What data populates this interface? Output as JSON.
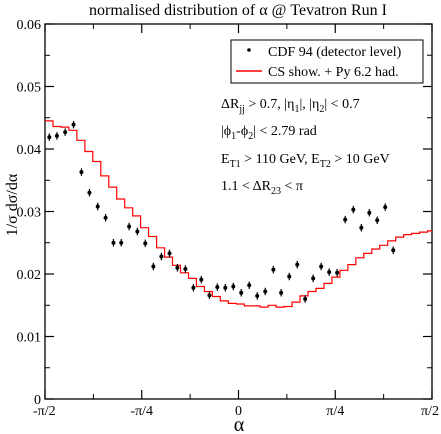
{
  "chart_data": {
    "type": "scatter",
    "title": "normalised distribution of α @ Tevatron Run I",
    "xlabel": "α",
    "ylabel": "1/σ dσ/dα",
    "xlim": [
      -1.5708,
      1.5708
    ],
    "ylim": [
      0,
      0.06
    ],
    "grid": false,
    "legend_position": "top-right",
    "xticks": [
      {
        "value": -1.5708,
        "label": "-π/2"
      },
      {
        "value": -0.7854,
        "label": "-π/4"
      },
      {
        "value": 0,
        "label": "0"
      },
      {
        "value": 0.7854,
        "label": "π/4"
      },
      {
        "value": 1.5708,
        "label": "π/2"
      }
    ],
    "yticks": [
      {
        "value": 0,
        "label": "0"
      },
      {
        "value": 0.01,
        "label": "0.01"
      },
      {
        "value": 0.02,
        "label": "0.02"
      },
      {
        "value": 0.03,
        "label": "0.03"
      },
      {
        "value": 0.04,
        "label": "0.04"
      },
      {
        "value": 0.05,
        "label": "0.05"
      },
      {
        "value": 0.06,
        "label": "0.06"
      }
    ],
    "series": [
      {
        "name": "CDF 94 (detector level)",
        "kind": "points_with_errors",
        "color": "#000000",
        "points": [
          {
            "x": -1.536,
            "y": 0.0419,
            "err": 0.0006
          },
          {
            "x": -1.474,
            "y": 0.0421,
            "err": 0.0006
          },
          {
            "x": -1.407,
            "y": 0.0427,
            "err": 0.0006
          },
          {
            "x": -1.339,
            "y": 0.0439,
            "err": 0.0006
          },
          {
            "x": -1.275,
            "y": 0.0363,
            "err": 0.0006
          },
          {
            "x": -1.21,
            "y": 0.033,
            "err": 0.0006
          },
          {
            "x": -1.143,
            "y": 0.0308,
            "err": 0.0006
          },
          {
            "x": -1.079,
            "y": 0.029,
            "err": 0.0006
          },
          {
            "x": -1.015,
            "y": 0.025,
            "err": 0.0006
          },
          {
            "x": -0.952,
            "y": 0.025,
            "err": 0.0006
          },
          {
            "x": -0.888,
            "y": 0.0276,
            "err": 0.0006
          },
          {
            "x": -0.821,
            "y": 0.0268,
            "err": 0.0006
          },
          {
            "x": -0.757,
            "y": 0.0249,
            "err": 0.0006
          },
          {
            "x": -0.691,
            "y": 0.0212,
            "err": 0.0006
          },
          {
            "x": -0.626,
            "y": 0.0228,
            "err": 0.0006
          },
          {
            "x": -0.56,
            "y": 0.0233,
            "err": 0.0006
          },
          {
            "x": -0.496,
            "y": 0.021,
            "err": 0.0006
          },
          {
            "x": -0.431,
            "y": 0.0208,
            "err": 0.0006
          },
          {
            "x": -0.366,
            "y": 0.0178,
            "err": 0.0006
          },
          {
            "x": -0.302,
            "y": 0.0191,
            "err": 0.0006
          },
          {
            "x": -0.236,
            "y": 0.0166,
            "err": 0.0006
          },
          {
            "x": -0.172,
            "y": 0.0179,
            "err": 0.0006
          },
          {
            "x": -0.107,
            "y": 0.0178,
            "err": 0.0006
          },
          {
            "x": -0.042,
            "y": 0.018,
            "err": 0.0006
          },
          {
            "x": 0.022,
            "y": 0.017,
            "err": 0.0006
          },
          {
            "x": 0.087,
            "y": 0.0182,
            "err": 0.0006
          },
          {
            "x": 0.152,
            "y": 0.0165,
            "err": 0.0006
          },
          {
            "x": 0.217,
            "y": 0.0172,
            "err": 0.0006
          },
          {
            "x": 0.283,
            "y": 0.0207,
            "err": 0.0006
          },
          {
            "x": 0.346,
            "y": 0.017,
            "err": 0.0006
          },
          {
            "x": 0.412,
            "y": 0.0196,
            "err": 0.0006
          },
          {
            "x": 0.477,
            "y": 0.0215,
            "err": 0.0006
          },
          {
            "x": 0.541,
            "y": 0.016,
            "err": 0.0006
          },
          {
            "x": 0.606,
            "y": 0.0193,
            "err": 0.0006
          },
          {
            "x": 0.671,
            "y": 0.0212,
            "err": 0.0006
          },
          {
            "x": 0.736,
            "y": 0.0203,
            "err": 0.0006
          },
          {
            "x": 0.801,
            "y": 0.0202,
            "err": 0.0006
          },
          {
            "x": 0.866,
            "y": 0.0287,
            "err": 0.0006
          },
          {
            "x": 0.932,
            "y": 0.0303,
            "err": 0.0006
          },
          {
            "x": 0.997,
            "y": 0.0274,
            "err": 0.0006
          },
          {
            "x": 1.062,
            "y": 0.0298,
            "err": 0.0006
          },
          {
            "x": 1.126,
            "y": 0.0286,
            "err": 0.0006
          },
          {
            "x": 1.191,
            "y": 0.0307,
            "err": 0.0006
          },
          {
            "x": 1.256,
            "y": 0.0238,
            "err": 0.0006
          }
        ]
      },
      {
        "name": "CS show. + Py 6.2 had.",
        "kind": "step",
        "color": "#ff0000",
        "edges": [
          -1.5708,
          -1.5061,
          -1.4414,
          -1.3767,
          -1.312,
          -1.2473,
          -1.1826,
          -1.1179,
          -1.0532,
          -0.9885,
          -0.9238,
          -0.8591,
          -0.7944,
          -0.7297,
          -0.665,
          -0.6003,
          -0.5356,
          -0.4709,
          -0.4062,
          -0.3415,
          -0.2768,
          -0.2121,
          -0.1474,
          -0.0827,
          -0.018,
          0.0467,
          0.1114,
          0.1761,
          0.2408,
          0.3055,
          0.3702,
          0.4349,
          0.4996,
          0.5643,
          0.629,
          0.6937,
          0.7584,
          0.8231,
          0.8878,
          0.9525,
          1.0172,
          1.0819,
          1.1466,
          1.2113,
          1.276,
          1.3407,
          1.4054,
          1.4701,
          1.5348,
          1.5708
        ],
        "values": [
          0.0445,
          0.0436,
          0.0435,
          0.043,
          0.0414,
          0.0396,
          0.038,
          0.0357,
          0.0339,
          0.032,
          0.0306,
          0.0293,
          0.0274,
          0.026,
          0.0242,
          0.0227,
          0.0214,
          0.0202,
          0.0193,
          0.018,
          0.0172,
          0.0164,
          0.0157,
          0.0153,
          0.0152,
          0.0149,
          0.0149,
          0.0147,
          0.015,
          0.0147,
          0.0148,
          0.0155,
          0.0165,
          0.0172,
          0.0177,
          0.0185,
          0.0195,
          0.0206,
          0.0215,
          0.0226,
          0.0233,
          0.024,
          0.0246,
          0.0253,
          0.0259,
          0.0263,
          0.0265,
          0.0267,
          0.0269
        ]
      }
    ],
    "annotations": [
      {
        "id": "cut-1",
        "parts": [
          [
            "ΔR",
            ""
          ],
          [
            "jj",
            "sub"
          ],
          [
            " > 0.7, |η",
            ""
          ],
          [
            "1",
            "sub"
          ],
          [
            "|, |η",
            ""
          ],
          [
            "2",
            "sub"
          ],
          [
            "| < 0.7",
            ""
          ]
        ]
      },
      {
        "id": "cut-2",
        "parts": [
          [
            "|ϕ",
            ""
          ],
          [
            "1",
            "sub"
          ],
          [
            "-ϕ",
            ""
          ],
          [
            "2",
            "sub"
          ],
          [
            "| < 2.79 rad",
            ""
          ]
        ]
      },
      {
        "id": "cut-3",
        "parts": [
          [
            "E",
            ""
          ],
          [
            "T1",
            "sub"
          ],
          [
            " > 110 GeV, E",
            ""
          ],
          [
            "T2",
            "sub"
          ],
          [
            " > 10 GeV",
            ""
          ]
        ]
      },
      {
        "id": "cut-4",
        "parts": [
          [
            "1.1 < ΔR",
            ""
          ],
          [
            "23",
            "sub"
          ],
          [
            " < π",
            ""
          ]
        ]
      }
    ]
  }
}
